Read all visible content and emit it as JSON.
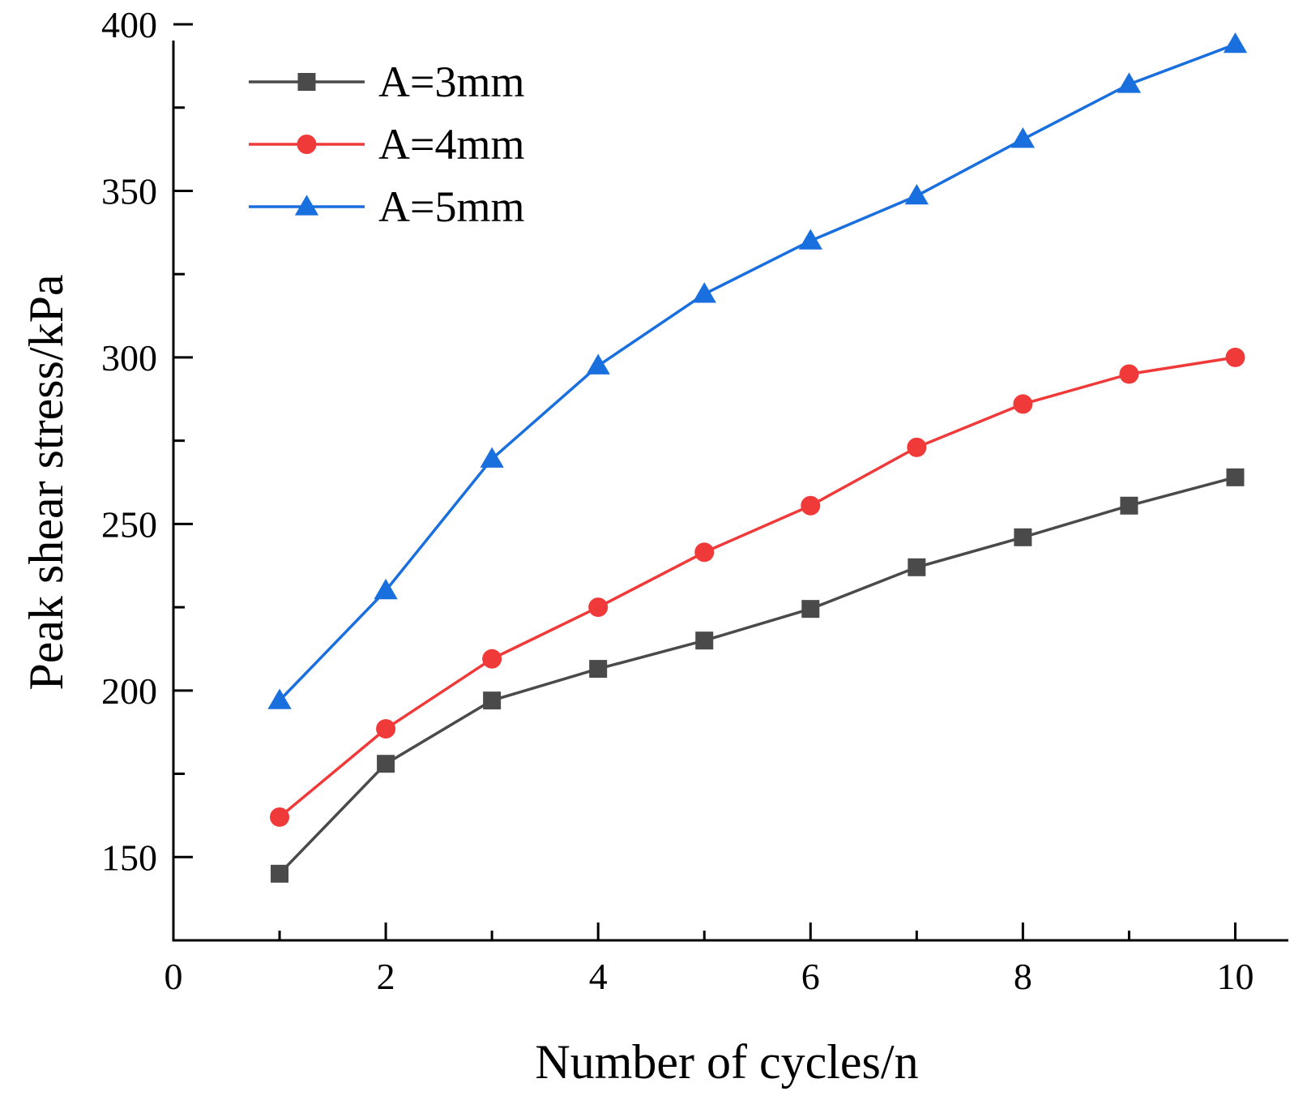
{
  "chart_data": {
    "type": "line",
    "title": "",
    "xlabel": "Number of cycles/n",
    "ylabel": "Peak shear stress/kPa",
    "xlim": [
      0,
      10.5
    ],
    "ylim": [
      125,
      400
    ],
    "xticks": [
      0,
      2,
      4,
      6,
      8,
      10
    ],
    "xtick_labels": [
      "0",
      "2",
      "4",
      "6",
      "8",
      "10"
    ],
    "yticks": [
      150,
      200,
      250,
      300,
      350,
      400
    ],
    "ytick_labels": [
      "150",
      "200",
      "250",
      "300",
      "350",
      "400"
    ],
    "x": [
      1,
      2,
      3,
      4,
      5,
      6,
      7,
      8,
      9,
      10
    ],
    "series": [
      {
        "name": "A=3mm",
        "color": "#4a4a4a",
        "marker": "square",
        "values": [
          145,
          178,
          197,
          206.5,
          215,
          224.5,
          237,
          246,
          255.5,
          264
        ]
      },
      {
        "name": "A=4mm",
        "color": "#f03a3a",
        "marker": "circle",
        "values": [
          162,
          188.5,
          209.5,
          225,
          241.5,
          255.5,
          273,
          286,
          295,
          300
        ]
      },
      {
        "name": "A=5mm",
        "color": "#1a6fdf",
        "marker": "triangle",
        "values": [
          197,
          230,
          269.5,
          297.5,
          319,
          335,
          348.5,
          365.5,
          382,
          394
        ]
      }
    ],
    "legend_position": "top-left",
    "grid": false
  }
}
